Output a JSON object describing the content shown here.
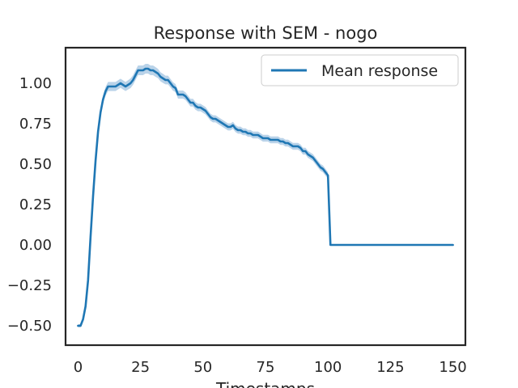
{
  "chart_data": {
    "type": "line",
    "title": "Response with SEM - nogo",
    "xlabel": "Timestamps",
    "ylabel": "",
    "xlim": [
      -5,
      155
    ],
    "ylim": [
      -0.62,
      1.22
    ],
    "xticks": [
      0,
      25,
      50,
      75,
      100,
      125,
      150
    ],
    "yticks": [
      -0.5,
      -0.25,
      0.0,
      0.25,
      0.5,
      0.75,
      1.0
    ],
    "xtick_labels": [
      "0",
      "25",
      "50",
      "75",
      "100",
      "125",
      "150"
    ],
    "ytick_labels": [
      "−0.50",
      "−0.25",
      "0.00",
      "0.25",
      "0.50",
      "0.75",
      "1.00"
    ],
    "grid": false,
    "legend": {
      "position": "top-right"
    },
    "colors": {
      "line": "#1f77b4",
      "band": "#a9c8e4"
    },
    "series": [
      {
        "name": "Mean response",
        "x": [
          0,
          1,
          2,
          3,
          4,
          5,
          6,
          7,
          8,
          9,
          10,
          11,
          12,
          13,
          14,
          15,
          16,
          17,
          18,
          19,
          20,
          21,
          22,
          23,
          24,
          25,
          26,
          27,
          28,
          29,
          30,
          31,
          32,
          33,
          34,
          35,
          36,
          37,
          38,
          39,
          40,
          41,
          42,
          43,
          44,
          45,
          46,
          47,
          48,
          49,
          50,
          51,
          52,
          53,
          54,
          55,
          56,
          57,
          58,
          59,
          60,
          61,
          62,
          63,
          64,
          65,
          66,
          67,
          68,
          69,
          70,
          71,
          72,
          73,
          74,
          75,
          76,
          77,
          78,
          79,
          80,
          81,
          82,
          83,
          84,
          85,
          86,
          87,
          88,
          89,
          90,
          91,
          92,
          93,
          94,
          95,
          96,
          97,
          98,
          99,
          100,
          101,
          102,
          103,
          104,
          105,
          106,
          107,
          108,
          109,
          110,
          111,
          112,
          113,
          114,
          115,
          116,
          117,
          118,
          119,
          120,
          121,
          122,
          123,
          124,
          125,
          126,
          127,
          128,
          129,
          130,
          131,
          132,
          133,
          134,
          135,
          136,
          137,
          138,
          139,
          140,
          141,
          142,
          143,
          144,
          145,
          146,
          147,
          148,
          149,
          150
        ],
        "y": [
          -0.5,
          -0.5,
          -0.46,
          -0.38,
          -0.22,
          0.05,
          0.3,
          0.52,
          0.7,
          0.82,
          0.9,
          0.95,
          0.98,
          0.98,
          0.98,
          0.98,
          0.99,
          1.0,
          0.99,
          0.98,
          0.99,
          1.0,
          1.02,
          1.05,
          1.08,
          1.08,
          1.08,
          1.09,
          1.09,
          1.08,
          1.08,
          1.07,
          1.06,
          1.04,
          1.03,
          1.02,
          1.02,
          1.0,
          0.98,
          0.97,
          0.93,
          0.93,
          0.93,
          0.92,
          0.9,
          0.88,
          0.88,
          0.86,
          0.85,
          0.85,
          0.84,
          0.83,
          0.81,
          0.79,
          0.78,
          0.78,
          0.77,
          0.76,
          0.75,
          0.74,
          0.73,
          0.73,
          0.74,
          0.72,
          0.71,
          0.71,
          0.7,
          0.7,
          0.69,
          0.69,
          0.68,
          0.68,
          0.68,
          0.67,
          0.66,
          0.66,
          0.66,
          0.65,
          0.65,
          0.65,
          0.65,
          0.64,
          0.64,
          0.63,
          0.63,
          0.62,
          0.61,
          0.61,
          0.61,
          0.6,
          0.58,
          0.58,
          0.56,
          0.55,
          0.54,
          0.52,
          0.5,
          0.48,
          0.47,
          0.45,
          0.43,
          0.0,
          0.0,
          0.0,
          0.0,
          0.0,
          0.0,
          0.0,
          0.0,
          0.0,
          0.0,
          0.0,
          0.0,
          0.0,
          0.0,
          0.0,
          0.0,
          0.0,
          0.0,
          0.0,
          0.0,
          0.0,
          0.0,
          0.0,
          0.0,
          0.0,
          0.0,
          0.0,
          0.0,
          0.0,
          0.0,
          0.0,
          0.0,
          0.0,
          0.0,
          0.0,
          0.0,
          0.0,
          0.0,
          0.0,
          0.0,
          0.0,
          0.0,
          0.0,
          0.0,
          0.0,
          0.0,
          0.0,
          0.0,
          0.0,
          0.0
        ],
        "sem": [
          0.01,
          0.01,
          0.012,
          0.014,
          0.016,
          0.018,
          0.02,
          0.022,
          0.024,
          0.025,
          0.026,
          0.027,
          0.028,
          0.028,
          0.028,
          0.028,
          0.028,
          0.028,
          0.028,
          0.028,
          0.029,
          0.03,
          0.03,
          0.03,
          0.03,
          0.03,
          0.03,
          0.03,
          0.03,
          0.03,
          0.03,
          0.03,
          0.029,
          0.028,
          0.028,
          0.027,
          0.027,
          0.026,
          0.026,
          0.025,
          0.025,
          0.025,
          0.025,
          0.024,
          0.024,
          0.024,
          0.024,
          0.024,
          0.023,
          0.023,
          0.023,
          0.023,
          0.022,
          0.022,
          0.022,
          0.022,
          0.022,
          0.022,
          0.022,
          0.022,
          0.022,
          0.022,
          0.022,
          0.022,
          0.022,
          0.022,
          0.021,
          0.021,
          0.021,
          0.021,
          0.021,
          0.021,
          0.021,
          0.021,
          0.021,
          0.021,
          0.021,
          0.021,
          0.021,
          0.021,
          0.021,
          0.021,
          0.021,
          0.021,
          0.021,
          0.021,
          0.021,
          0.021,
          0.021,
          0.021,
          0.021,
          0.021,
          0.021,
          0.021,
          0.021,
          0.021,
          0.021,
          0.021,
          0.021,
          0.021,
          0.02,
          0.003,
          0.003,
          0.003,
          0.003,
          0.003,
          0.003,
          0.003,
          0.003,
          0.003,
          0.003,
          0.003,
          0.003,
          0.003,
          0.003,
          0.003,
          0.003,
          0.003,
          0.003,
          0.003,
          0.003,
          0.003,
          0.003,
          0.003,
          0.003,
          0.003,
          0.003,
          0.003,
          0.003,
          0.003,
          0.003,
          0.003,
          0.003,
          0.003,
          0.003,
          0.003,
          0.003,
          0.003,
          0.003,
          0.003,
          0.003,
          0.003,
          0.003,
          0.003,
          0.003,
          0.003,
          0.003,
          0.003,
          0.003,
          0.003,
          0.003
        ]
      }
    ]
  }
}
